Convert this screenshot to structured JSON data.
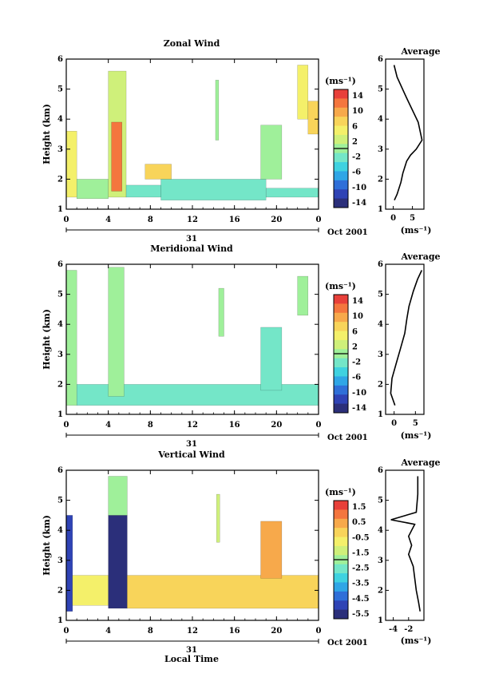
{
  "panels": [
    {
      "id": "zonal",
      "title": "Zonal Wind",
      "ylabel": "Height (km)",
      "yticks": [
        "1",
        "2",
        "3",
        "4",
        "5",
        "6"
      ],
      "xticks": [
        "0",
        "4",
        "8",
        "12",
        "16",
        "20",
        "0"
      ],
      "date_day": "31",
      "date_month": "Oct 2001",
      "colorbar_unit": "(ms⁻¹)",
      "colorbar_ticks": [
        "14",
        "10",
        "6",
        "2",
        "-2",
        "-6",
        "-10",
        "-14"
      ],
      "avg_title": "Average",
      "avg_xticks": [
        "0",
        "5"
      ],
      "avg_xlabel": "(ms⁻¹)"
    },
    {
      "id": "meridional",
      "title": "Meridional Wind",
      "ylabel": "Height (km)",
      "yticks": [
        "1",
        "2",
        "3",
        "4",
        "5",
        "6"
      ],
      "xticks": [
        "0",
        "4",
        "8",
        "12",
        "16",
        "20",
        "0"
      ],
      "date_day": "31",
      "date_month": "Oct 2001",
      "colorbar_unit": "(ms⁻¹)",
      "colorbar_ticks": [
        "14",
        "10",
        "6",
        "2",
        "-2",
        "-6",
        "-10",
        "-14"
      ],
      "avg_title": "Average",
      "avg_xticks": [
        "0",
        "5"
      ],
      "avg_xlabel": "(ms⁻¹)"
    },
    {
      "id": "vertical",
      "title": "Vertical Wind",
      "ylabel": "Height (km)",
      "yticks": [
        "1",
        "2",
        "3",
        "4",
        "5",
        "6"
      ],
      "xticks": [
        "0",
        "4",
        "8",
        "12",
        "16",
        "20",
        "0"
      ],
      "date_day": "31",
      "date_month": "Oct 2001",
      "xlabel": "Local Time",
      "colorbar_unit": "(ms⁻¹)",
      "colorbar_ticks": [
        "1.5",
        "0.5",
        "-0.5",
        "-1.5",
        "-2.5",
        "-3.5",
        "-4.5",
        "-5.5"
      ],
      "avg_title": "Average",
      "avg_xticks": [
        "-4",
        "-2"
      ],
      "avg_xlabel": "(ms⁻¹)"
    }
  ],
  "colors": {
    "palette": [
      "#2b2f7a",
      "#2f43b5",
      "#2f6fd8",
      "#2fa6e6",
      "#3fd2e0",
      "#74e6c8",
      "#9ff09a",
      "#cff07a",
      "#f4f06a",
      "#f8d45a",
      "#f7a94b",
      "#f4763e",
      "#e8403a"
    ]
  },
  "chart_data": [
    {
      "type": "heatmap",
      "title": "Zonal Wind",
      "xlabel": "",
      "ylabel": "Height (km)",
      "xlim": [
        0,
        24
      ],
      "ylim": [
        1,
        6
      ],
      "colorbar_range": [
        -14,
        14
      ],
      "features": [
        {
          "t": [
            0,
            1
          ],
          "h": [
            1.4,
            3.6
          ],
          "v": 5
        },
        {
          "t": [
            1,
            4
          ],
          "h": [
            1.35,
            2.0
          ],
          "v": -1
        },
        {
          "t": [
            4,
            5.7
          ],
          "h": [
            1.4,
            5.6
          ],
          "v": 3
        },
        {
          "t": [
            4.3,
            5.3
          ],
          "h": [
            1.6,
            3.9
          ],
          "v": 11
        },
        {
          "t": [
            5.7,
            9
          ],
          "h": [
            1.4,
            1.8
          ],
          "v": -3
        },
        {
          "t": [
            9,
            19
          ],
          "h": [
            1.3,
            2.0
          ],
          "v": -2
        },
        {
          "t": [
            14.2,
            14.5
          ],
          "h": [
            3.3,
            5.3
          ],
          "v": -1
        },
        {
          "t": [
            19,
            24
          ],
          "h": [
            1.4,
            1.7
          ],
          "v": -3
        },
        {
          "t": [
            18.5,
            20.5
          ],
          "h": [
            2.0,
            3.8
          ],
          "v": -1
        },
        {
          "t": [
            22,
            23
          ],
          "h": [
            4.0,
            5.8
          ],
          "v": 4
        },
        {
          "t": [
            23,
            24
          ],
          "h": [
            3.5,
            4.6
          ],
          "v": 7
        },
        {
          "t": [
            7.5,
            10
          ],
          "h": [
            2.0,
            2.5
          ],
          "v": 6
        }
      ],
      "average_profile": {
        "x": [
          0.3,
          1.0,
          2.0,
          2.5,
          3.0,
          3.5,
          4.5,
          6.0,
          7.5,
          6.5,
          3.5,
          1.0,
          0.2
        ],
        "h": [
          1.3,
          1.5,
          1.9,
          2.2,
          2.4,
          2.6,
          2.8,
          3.0,
          3.3,
          3.9,
          4.7,
          5.4,
          5.8
        ]
      }
    },
    {
      "type": "heatmap",
      "title": "Meridional Wind",
      "xlabel": "",
      "ylabel": "Height (km)",
      "xlim": [
        0,
        24
      ],
      "ylim": [
        1,
        6
      ],
      "colorbar_range": [
        -14,
        14
      ],
      "features": [
        {
          "t": [
            0,
            1
          ],
          "h": [
            1.3,
            5.8
          ],
          "v": -1
        },
        {
          "t": [
            1,
            24
          ],
          "h": [
            1.3,
            2.0
          ],
          "v": -2
        },
        {
          "t": [
            4,
            5.5
          ],
          "h": [
            1.6,
            5.9
          ],
          "v": 0
        },
        {
          "t": [
            14.5,
            15
          ],
          "h": [
            3.6,
            5.2
          ],
          "v": -1
        },
        {
          "t": [
            18.5,
            20.5
          ],
          "h": [
            1.8,
            3.9
          ],
          "v": -3
        },
        {
          "t": [
            22,
            23
          ],
          "h": [
            4.3,
            5.6
          ],
          "v": 0
        }
      ],
      "average_profile": {
        "x": [
          0.2,
          -0.8,
          -0.5,
          0.5,
          1.5,
          2.5,
          3.0,
          3.5,
          4.5,
          5.5,
          6.5
        ],
        "h": [
          1.3,
          1.7,
          2.2,
          2.7,
          3.2,
          3.7,
          4.2,
          4.6,
          5.1,
          5.5,
          5.8
        ]
      }
    },
    {
      "type": "heatmap",
      "title": "Vertical Wind",
      "xlabel": "Local Time",
      "ylabel": "Height (km)",
      "xlim": [
        0,
        24
      ],
      "ylim": [
        1,
        6
      ],
      "colorbar_range": [
        -5.5,
        1.5
      ],
      "features": [
        {
          "t": [
            0,
            0.6
          ],
          "h": [
            1.3,
            4.5
          ],
          "v": -5.0
        },
        {
          "t": [
            0.6,
            4
          ],
          "h": [
            1.5,
            2.5
          ],
          "v": -0.8
        },
        {
          "t": [
            4,
            5.8
          ],
          "h": [
            1.4,
            4.5
          ],
          "v": -5.3
        },
        {
          "t": [
            4,
            5.8
          ],
          "h": [
            4.5,
            5.8
          ],
          "v": -1.8
        },
        {
          "t": [
            5.8,
            24
          ],
          "h": [
            1.4,
            2.5
          ],
          "v": 0.0
        },
        {
          "t": [
            18.5,
            20.5
          ],
          "h": [
            2.4,
            4.3
          ],
          "v": 0.4
        },
        {
          "t": [
            14.3,
            14.6
          ],
          "h": [
            3.6,
            5.2
          ],
          "v": -1.6
        }
      ],
      "average_profile": {
        "x": [
          -0.5,
          -0.7,
          -1.0,
          -1.2,
          -1.4,
          -2.0,
          -1.6,
          -2.0,
          -1.6,
          -1.2,
          -4.3,
          -1.0,
          -0.8,
          -0.8
        ],
        "h": [
          1.3,
          1.6,
          2.0,
          2.4,
          2.8,
          3.2,
          3.5,
          3.8,
          4.0,
          4.2,
          4.35,
          4.6,
          5.2,
          5.8
        ]
      }
    }
  ]
}
